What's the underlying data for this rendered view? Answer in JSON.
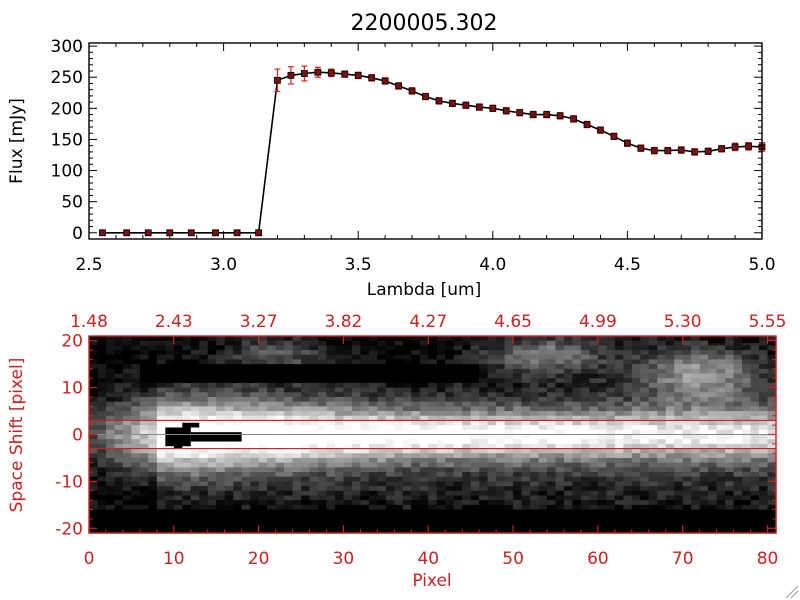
{
  "chart_data": [
    {
      "type": "line",
      "title": "2200005.302",
      "xlabel": "Lambda [um]",
      "ylabel": "Flux [mJy]",
      "xlim": [
        2.5,
        5.0
      ],
      "ylim": [
        -10,
        305
      ],
      "x_ticks": [
        "2.5",
        "3.0",
        "3.5",
        "4.0",
        "4.5",
        "5.0"
      ],
      "x_tick_values": [
        2.5,
        3.0,
        3.5,
        4.0,
        4.5,
        5.0
      ],
      "y_ticks": [
        "0",
        "50",
        "100",
        "150",
        "200",
        "250",
        "300"
      ],
      "y_tick_values": [
        0,
        50,
        100,
        150,
        200,
        250,
        300
      ],
      "grid": false,
      "line_color": "#000000",
      "marker_color": "#7a1010",
      "errorbar_color": "#dd2020",
      "series": [
        {
          "x": [
            2.55,
            2.64,
            2.72,
            2.8,
            2.88,
            2.97,
            3.05,
            3.13,
            3.2,
            3.25,
            3.3,
            3.35,
            3.4,
            3.45,
            3.5,
            3.55,
            3.6,
            3.65,
            3.7,
            3.75,
            3.8,
            3.85,
            3.9,
            3.95,
            4.0,
            4.05,
            4.1,
            4.15,
            4.2,
            4.25,
            4.3,
            4.35,
            4.4,
            4.45,
            4.5,
            4.55,
            4.6,
            4.65,
            4.7,
            4.75,
            4.8,
            4.85,
            4.9,
            4.95,
            5.0
          ],
          "y": [
            0,
            0,
            0,
            0,
            0,
            0,
            0,
            0,
            245,
            253,
            256,
            258,
            257,
            255,
            253,
            249,
            244,
            236,
            228,
            219,
            212,
            208,
            205,
            202,
            200,
            196,
            193,
            190,
            190,
            188,
            183,
            174,
            165,
            155,
            144,
            136,
            132,
            132,
            133,
            130,
            131,
            135,
            138,
            139,
            138
          ],
          "err": [
            0,
            0,
            0,
            0,
            0,
            0,
            0,
            0,
            18,
            14,
            12,
            8,
            6,
            5,
            5,
            5,
            5,
            5,
            5,
            5,
            5,
            5,
            5,
            5,
            5,
            5,
            5,
            5,
            5,
            5,
            5,
            5,
            5,
            5,
            5,
            5,
            5,
            5,
            5,
            5,
            5,
            5,
            6,
            6,
            7
          ]
        }
      ]
    },
    {
      "type": "heatmap",
      "title": "",
      "xlabel": "Pixel",
      "ylabel": "Space Shift [pixel]",
      "xlim": [
        0,
        81
      ],
      "ylim": [
        -21,
        21
      ],
      "x_ticks": [
        "0",
        "10",
        "20",
        "30",
        "40",
        "50",
        "60",
        "70",
        "80"
      ],
      "x_tick_values": [
        0,
        10,
        20,
        30,
        40,
        50,
        60,
        70,
        80
      ],
      "y_ticks": [
        "-20",
        "-10",
        "0",
        "10",
        "20"
      ],
      "y_tick_values": [
        -20,
        -10,
        0,
        10,
        20
      ],
      "top_axis_ticks": [
        "1.48",
        "2.43",
        "3.27",
        "3.82",
        "4.27",
        "4.65",
        "4.99",
        "5.30",
        "5.55"
      ],
      "extraction_window": [
        -3,
        3
      ],
      "axis_color": "#cc2222",
      "colormap": "grayscale"
    }
  ]
}
